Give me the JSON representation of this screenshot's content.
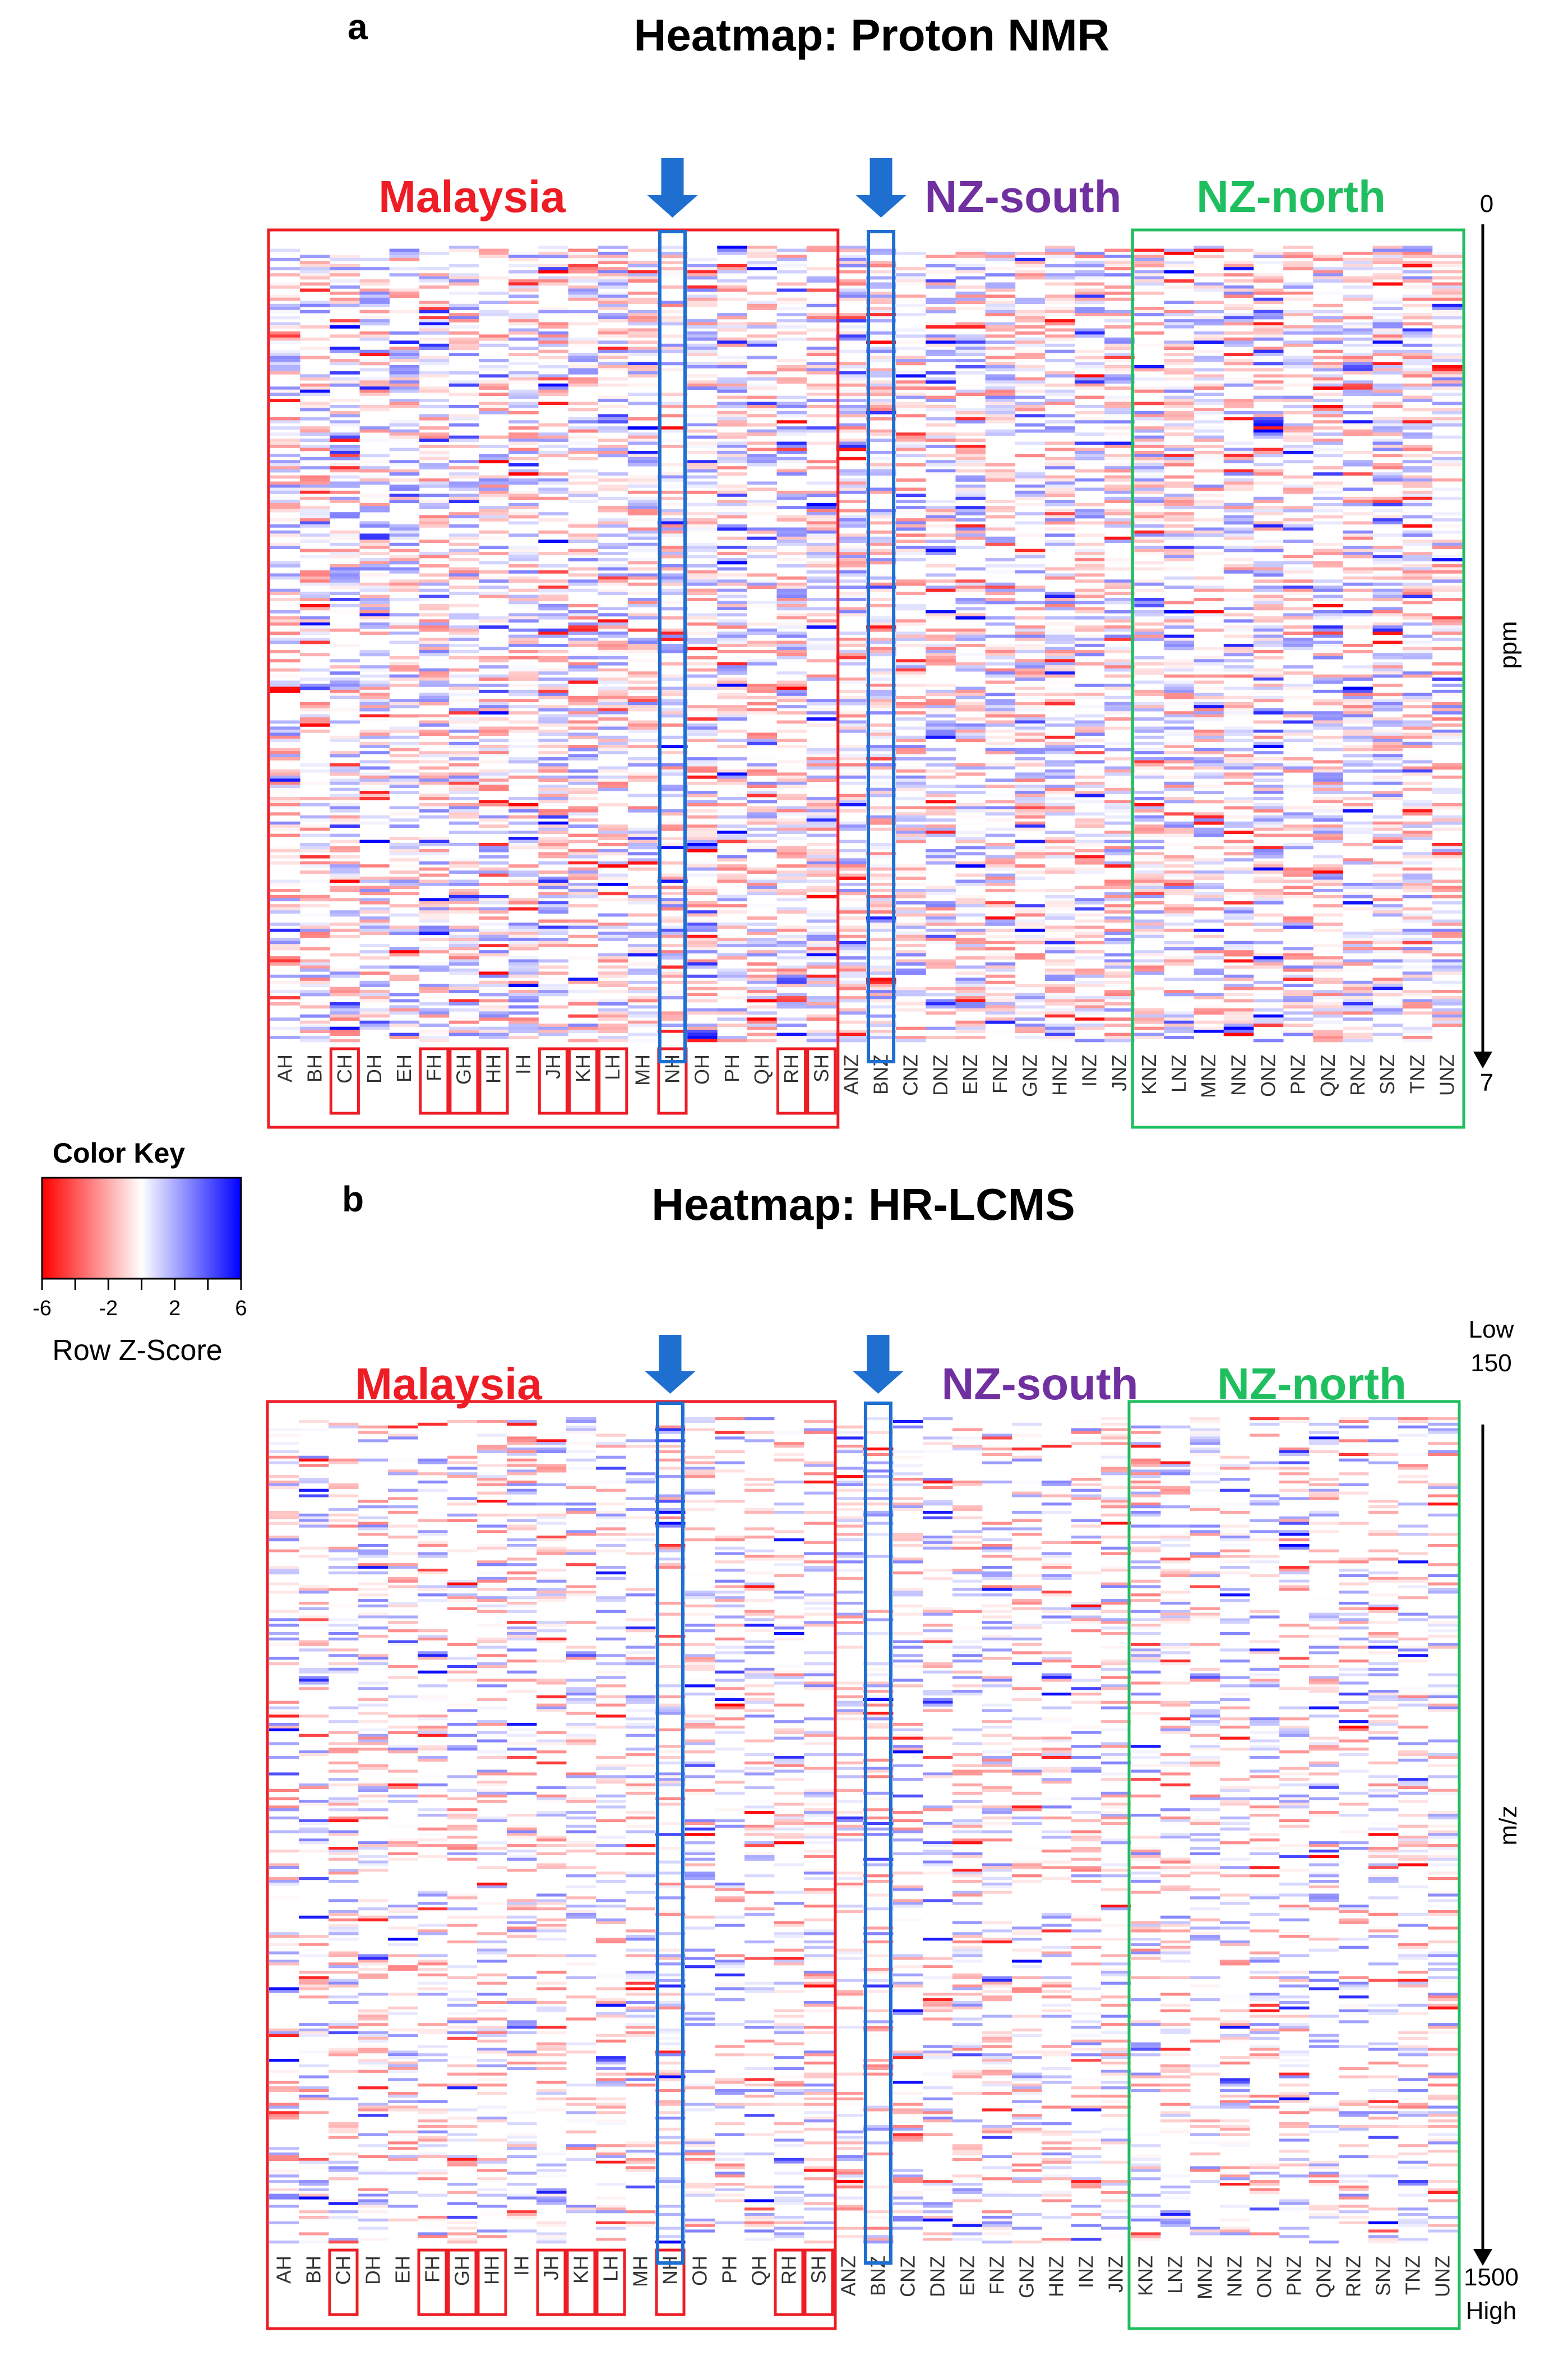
{
  "chart_data": [
    {
      "type": "heatmap",
      "panel": "a",
      "title": "Heatmap: Proton NMR",
      "ylabel": "ppm",
      "y_range_labels": [
        "0",
        "7"
      ],
      "groups": [
        {
          "name": "Malaysia",
          "color": "#ee1c24",
          "samples": [
            "AH",
            "BH",
            "CH",
            "DH",
            "EH",
            "FH",
            "GH",
            "HH",
            "IH",
            "JH",
            "KH",
            "LH",
            "MH",
            "NH",
            "OH",
            "PH",
            "QH",
            "RH",
            "SH"
          ]
        },
        {
          "name": "NZ-south",
          "color": "#7030a0",
          "samples": [
            "ANZ",
            "BNZ",
            "CNZ",
            "DNZ",
            "ENZ",
            "FNZ",
            "GNZ",
            "HNZ",
            "INZ",
            "JNZ"
          ]
        },
        {
          "name": "NZ-north",
          "color": "#1fbf5f",
          "samples": [
            "KNZ",
            "LNZ",
            "MNZ",
            "NNZ",
            "ONZ",
            "PNZ",
            "QNZ",
            "RNZ",
            "SNZ",
            "TNZ",
            "UNZ"
          ]
        }
      ],
      "highlighted_samples": [
        "CH",
        "FH",
        "GH",
        "HH",
        "JH",
        "KH",
        "LH",
        "NH",
        "RH",
        "SH"
      ],
      "arrow_marked_samples": [
        "NH",
        "BNZ"
      ],
      "color_scale": {
        "min": -6,
        "max": 6,
        "low_color": "#ff0000",
        "mid_color": "#ffffff",
        "high_color": "#0000ff"
      }
    },
    {
      "type": "heatmap",
      "panel": "b",
      "title": "Heatmap: HR-LCMS",
      "ylabel": "m/z",
      "y_range_labels": {
        "top_word": "Low",
        "top_value": "150",
        "bottom_value": "1500",
        "bottom_word": "High"
      },
      "groups": [
        {
          "name": "Malaysia",
          "color": "#ee1c24",
          "samples": [
            "AH",
            "BH",
            "CH",
            "DH",
            "EH",
            "FH",
            "GH",
            "HH",
            "IH",
            "JH",
            "KH",
            "LH",
            "MH",
            "NH",
            "OH",
            "PH",
            "QH",
            "RH",
            "SH"
          ]
        },
        {
          "name": "NZ-south",
          "color": "#7030a0",
          "samples": [
            "ANZ",
            "BNZ",
            "CNZ",
            "DNZ",
            "ENZ",
            "FNZ",
            "GNZ",
            "HNZ",
            "INZ",
            "JNZ"
          ]
        },
        {
          "name": "NZ-north",
          "color": "#1fbf5f",
          "samples": [
            "KNZ",
            "LNZ",
            "MNZ",
            "NNZ",
            "ONZ",
            "PNZ",
            "QNZ",
            "RNZ",
            "SNZ",
            "TNZ",
            "UNZ"
          ]
        }
      ],
      "highlighted_samples": [
        "CH",
        "FH",
        "GH",
        "HH",
        "JH",
        "KH",
        "LH",
        "NH",
        "RH",
        "SH"
      ],
      "arrow_marked_samples": [
        "NH",
        "BNZ"
      ],
      "color_scale": {
        "min": -6,
        "max": 6,
        "low_color": "#ff0000",
        "mid_color": "#ffffff",
        "high_color": "#0000ff"
      }
    }
  ],
  "color_key": {
    "title": "Color Key",
    "ticks": [
      "-6",
      "-2",
      "2",
      "6"
    ],
    "label": "Row Z-Score"
  },
  "colors": {
    "malaysia_box": "#ee1c24",
    "nz_north_box": "#1fbf5f",
    "highlight_box": "#1f6fd1",
    "arrow": "#1f6fd1"
  }
}
